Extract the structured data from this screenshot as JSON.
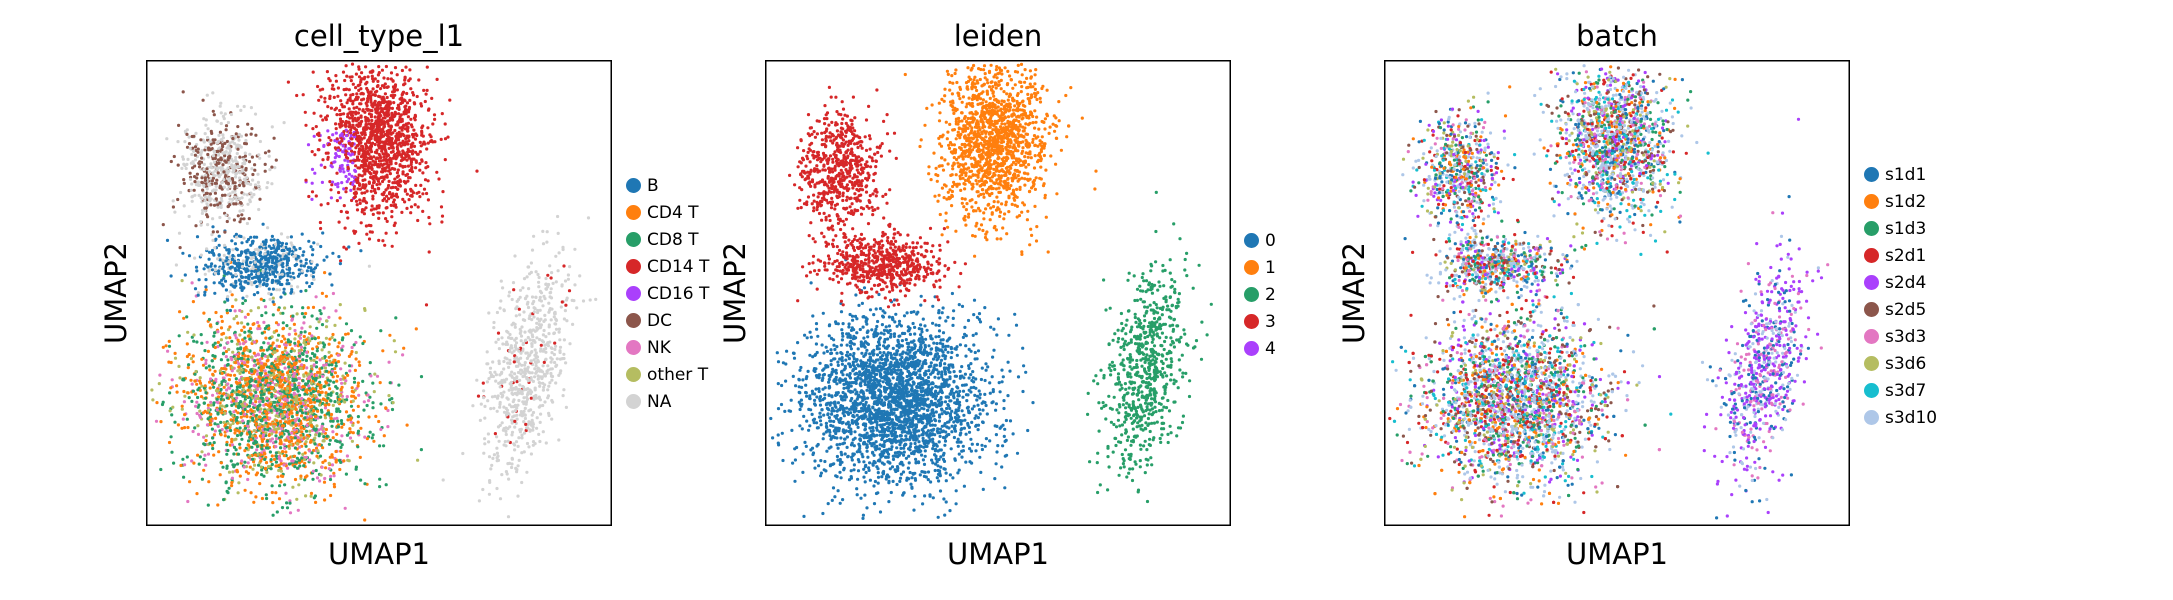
{
  "chart_data": [
    {
      "type": "scatter",
      "title": "cell_type_l1",
      "xlabel": "UMAP1",
      "ylabel": "UMAP2",
      "grid": false,
      "ticks": false,
      "legend_position": "right",
      "categories": [
        {
          "name": "B",
          "color": "#1f77b4"
        },
        {
          "name": "CD4 T",
          "color": "#ff7f0e"
        },
        {
          "name": "CD8 T",
          "color": "#279e68"
        },
        {
          "name": "CD14 T",
          "color": "#d62728"
        },
        {
          "name": "CD16 T",
          "color": "#aa40fc"
        },
        {
          "name": "DC",
          "color": "#8c564b"
        },
        {
          "name": "NK",
          "color": "#e377c2"
        },
        {
          "name": "other T",
          "color": "#b5bd61"
        },
        {
          "name": "NA",
          "color": "#d3d3d3"
        }
      ]
    },
    {
      "type": "scatter",
      "title": "leiden",
      "xlabel": "UMAP1",
      "ylabel": "UMAP2",
      "grid": false,
      "ticks": false,
      "legend_position": "right",
      "categories": [
        {
          "name": "0",
          "color": "#1f77b4"
        },
        {
          "name": "1",
          "color": "#ff7f0e"
        },
        {
          "name": "2",
          "color": "#279e68"
        },
        {
          "name": "3",
          "color": "#d62728"
        },
        {
          "name": "4",
          "color": "#aa40fc"
        }
      ]
    },
    {
      "type": "scatter",
      "title": "batch",
      "xlabel": "UMAP1",
      "ylabel": "UMAP2",
      "grid": false,
      "ticks": false,
      "legend_position": "right",
      "categories": [
        {
          "name": "s1d1",
          "color": "#1f77b4"
        },
        {
          "name": "s1d2",
          "color": "#ff7f0e"
        },
        {
          "name": "s1d3",
          "color": "#279e68"
        },
        {
          "name": "s2d1",
          "color": "#d62728"
        },
        {
          "name": "s2d4",
          "color": "#aa40fc"
        },
        {
          "name": "s2d5",
          "color": "#8c564b"
        },
        {
          "name": "s3d3",
          "color": "#e377c2"
        },
        {
          "name": "s3d6",
          "color": "#b5bd61"
        },
        {
          "name": "s3d7",
          "color": "#17becf"
        },
        {
          "name": "s3d10",
          "color": "#aec7e8"
        }
      ]
    }
  ]
}
